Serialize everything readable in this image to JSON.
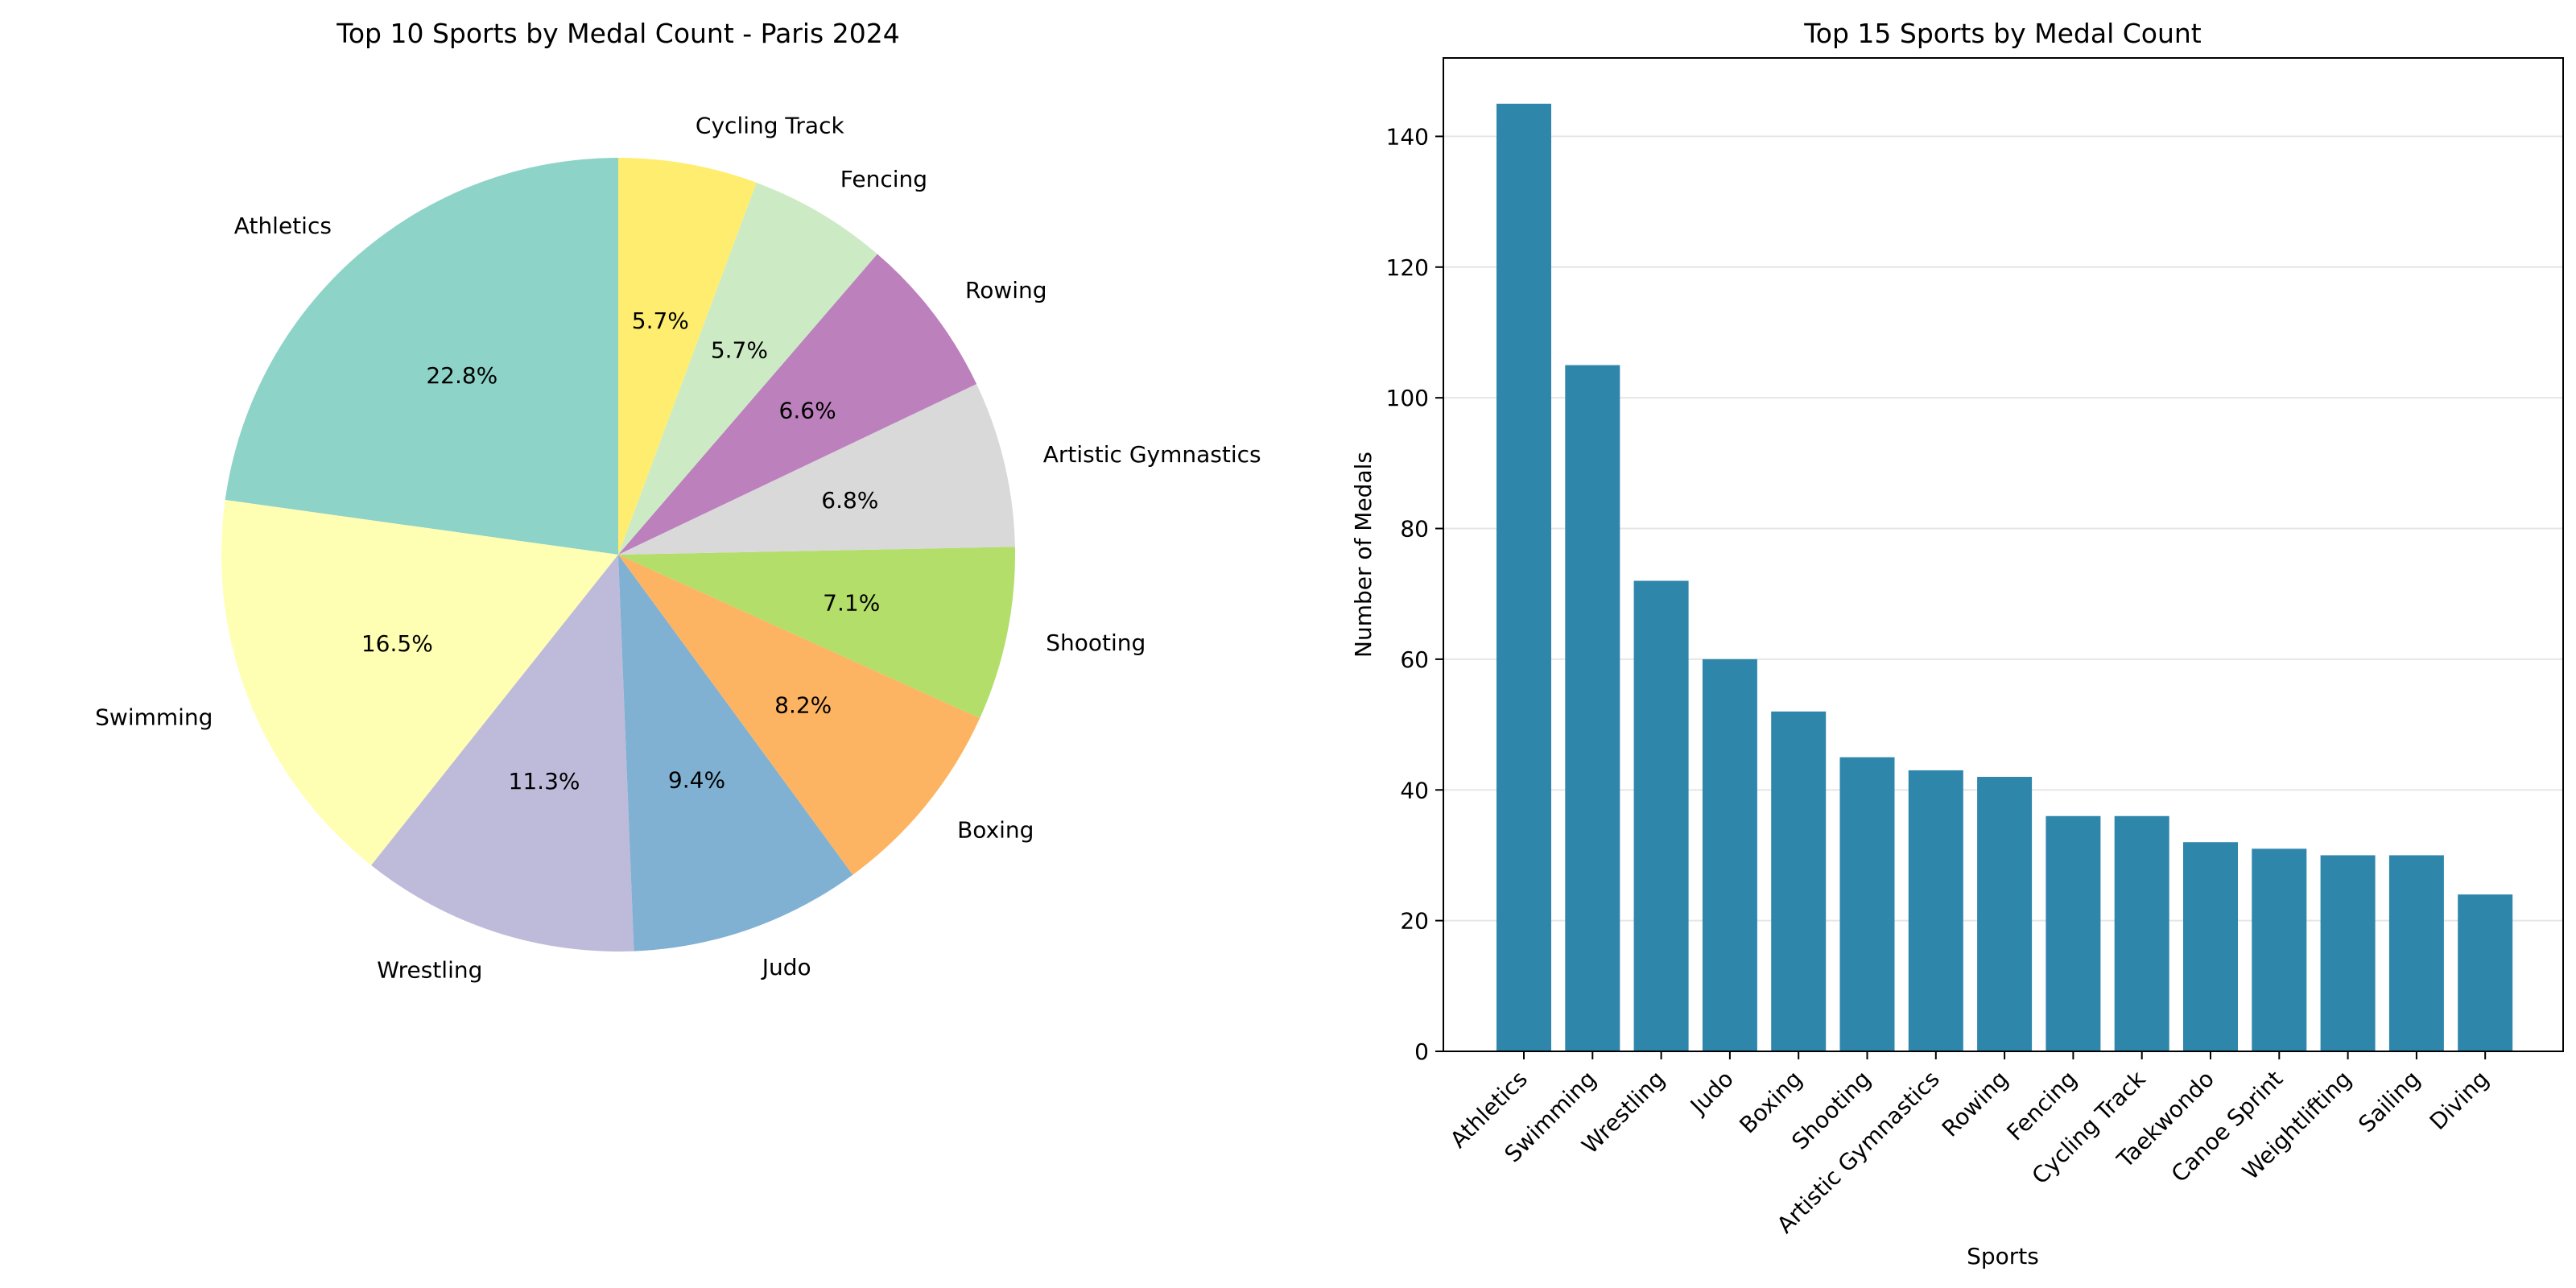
{
  "chart_data": [
    {
      "type": "pie",
      "title": "Top 10 Sports by Medal Count - Paris 2024",
      "start_angle_deg": 90,
      "direction": "counterclockwise",
      "slices": [
        {
          "label": "Athletics",
          "value": 145,
          "pct_label": "22.8%",
          "color": "#8dd3c7"
        },
        {
          "label": "Swimming",
          "value": 105,
          "pct_label": "16.5%",
          "color": "#ffffb3"
        },
        {
          "label": "Wrestling",
          "value": 72,
          "pct_label": "11.3%",
          "color": "#bebada"
        },
        {
          "label": "Judo",
          "value": 60,
          "pct_label": "9.4%",
          "color": "#80b1d3"
        },
        {
          "label": "Boxing",
          "value": 52,
          "pct_label": "8.2%",
          "color": "#fdb462"
        },
        {
          "label": "Shooting",
          "value": 45,
          "pct_label": "7.1%",
          "color": "#b3de69"
        },
        {
          "label": "Artistic Gymnastics",
          "value": 43,
          "pct_label": "6.8%",
          "color": "#d9d9d9"
        },
        {
          "label": "Rowing",
          "value": 42,
          "pct_label": "6.6%",
          "color": "#bc80bd"
        },
        {
          "label": "Fencing",
          "value": 36,
          "pct_label": "5.7%",
          "color": "#ccebc5"
        },
        {
          "label": "Cycling Track",
          "value": 36,
          "pct_label": "5.7%",
          "color": "#ffed6f"
        }
      ]
    },
    {
      "type": "bar",
      "title": "Top 15 Sports by Medal Count",
      "xlabel": "Sports",
      "ylabel": "Number of Medals",
      "ylim": [
        0,
        152
      ],
      "yticks": [
        0,
        20,
        40,
        60,
        80,
        100,
        120,
        140
      ],
      "grid": "horizontal",
      "bar_color": "#2e86ab",
      "categories": [
        "Athletics",
        "Swimming",
        "Wrestling",
        "Judo",
        "Boxing",
        "Shooting",
        "Artistic Gymnastics",
        "Rowing",
        "Fencing",
        "Cycling Track",
        "Taekwondo",
        "Canoe Sprint",
        "Weightlifting",
        "Sailing",
        "Diving"
      ],
      "values": [
        145,
        105,
        72,
        60,
        52,
        45,
        43,
        42,
        36,
        36,
        32,
        31,
        30,
        30,
        24
      ]
    }
  ]
}
